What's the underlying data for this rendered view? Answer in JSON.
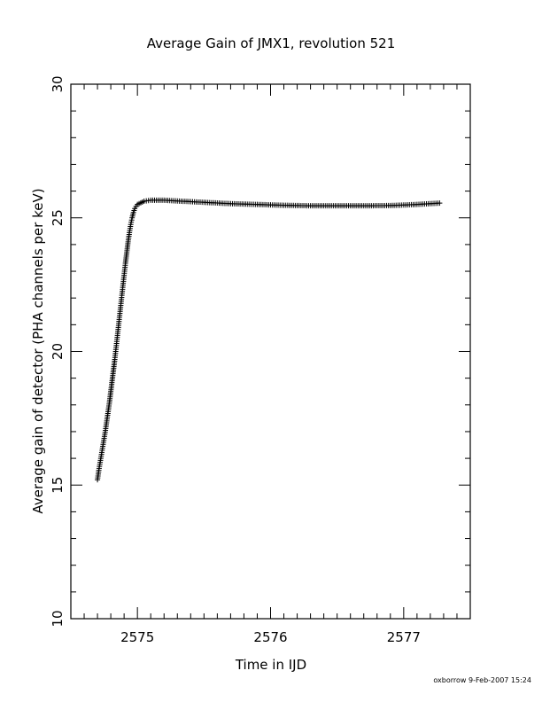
{
  "chart_data": {
    "type": "scatter",
    "title": "Average Gain of JMX1, revolution 521",
    "xlabel": "Time in IJD",
    "ylabel": "Average gain of detector (PHA channels per keV)",
    "xlim": [
      2574.5,
      2577.5
    ],
    "ylim": [
      10,
      30
    ],
    "x_ticks": [
      2575,
      2576,
      2577
    ],
    "x_tick_labels": [
      "2575",
      "2576",
      "2577"
    ],
    "x_minor_step": 0.1,
    "y_ticks": [
      10,
      15,
      20,
      25,
      30
    ],
    "y_tick_labels": [
      "10",
      "15",
      "20",
      "25",
      "30"
    ],
    "y_minor_step": 1,
    "grid": false,
    "marker": "plus",
    "series": [
      {
        "x_start": 2574.7,
        "x_end": 2577.27,
        "points": [
          [
            2574.7,
            15.2
          ],
          [
            2574.71,
            15.55
          ],
          [
            2574.72,
            15.85
          ],
          [
            2574.73,
            16.15
          ],
          [
            2574.74,
            16.45
          ],
          [
            2574.75,
            16.75
          ],
          [
            2574.76,
            17.05
          ],
          [
            2574.77,
            17.4
          ],
          [
            2574.78,
            17.75
          ],
          [
            2574.79,
            18.1
          ],
          [
            2574.8,
            18.5
          ],
          [
            2574.81,
            18.9
          ],
          [
            2574.82,
            19.3
          ],
          [
            2574.83,
            19.7
          ],
          [
            2574.84,
            20.15
          ],
          [
            2574.85,
            20.6
          ],
          [
            2574.86,
            21.05
          ],
          [
            2574.87,
            21.5
          ],
          [
            2574.88,
            21.95
          ],
          [
            2574.89,
            22.4
          ],
          [
            2574.9,
            22.85
          ],
          [
            2574.91,
            23.3
          ],
          [
            2574.92,
            23.7
          ],
          [
            2574.93,
            24.1
          ],
          [
            2574.94,
            24.45
          ],
          [
            2574.95,
            24.75
          ],
          [
            2574.96,
            25.0
          ],
          [
            2574.97,
            25.2
          ],
          [
            2574.98,
            25.35
          ],
          [
            2575.0,
            25.5
          ],
          [
            2575.05,
            25.62
          ],
          [
            2575.1,
            25.66
          ],
          [
            2575.2,
            25.66
          ],
          [
            2575.3,
            25.63
          ],
          [
            2575.5,
            25.58
          ],
          [
            2575.7,
            25.53
          ],
          [
            2575.9,
            25.5
          ],
          [
            2576.1,
            25.47
          ],
          [
            2576.3,
            25.45
          ],
          [
            2576.5,
            25.45
          ],
          [
            2576.7,
            25.45
          ],
          [
            2576.9,
            25.46
          ],
          [
            2577.1,
            25.5
          ],
          [
            2577.27,
            25.55
          ]
        ]
      }
    ]
  },
  "footer": {
    "credit": "oxborrow  9-Feb-2007 15:24"
  }
}
